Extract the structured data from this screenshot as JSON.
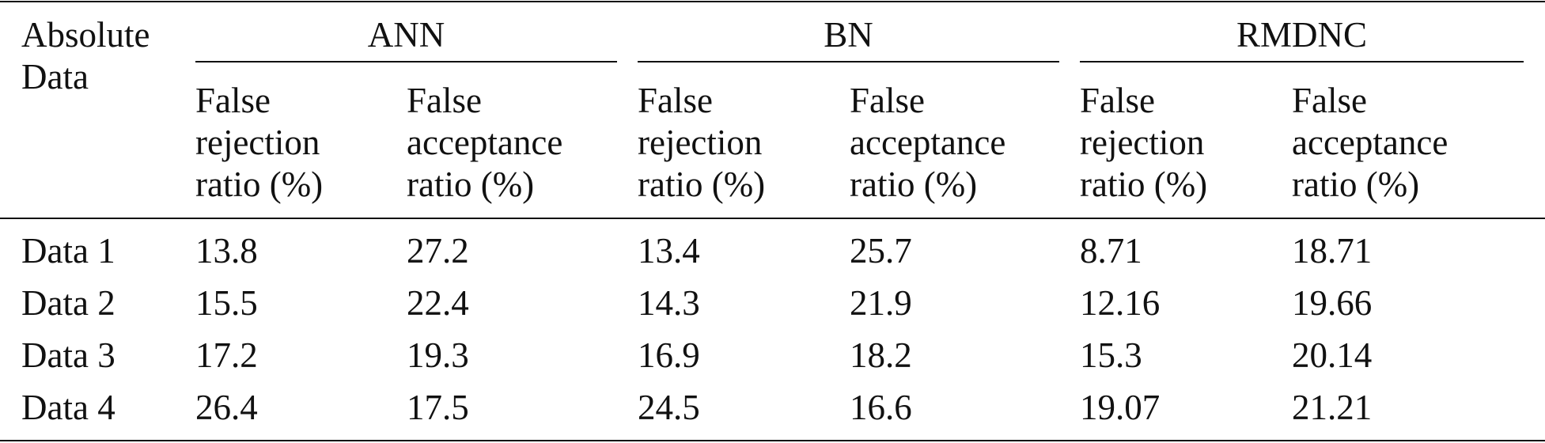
{
  "table": {
    "corner": "Absolute Data",
    "groups": [
      "ANN",
      "BN",
      "RMDNC"
    ],
    "subheaders": [
      "False rejection ratio (%)",
      "False acceptance ratio (%)",
      "False rejection ratio (%)",
      "False acceptance ratio (%)",
      "False rejection ratio (%)",
      "False acceptance ratio (%)"
    ],
    "rows": [
      [
        "Data 1",
        13.8,
        27.2,
        13.4,
        25.7,
        8.71,
        18.71
      ],
      [
        "Data 2",
        15.5,
        22.4,
        14.3,
        21.9,
        12.16,
        19.66
      ],
      [
        "Data 3",
        17.2,
        19.3,
        16.9,
        18.2,
        15.3,
        20.14
      ],
      [
        "Data 4",
        26.4,
        17.5,
        24.5,
        16.6,
        19.07,
        21.21
      ]
    ]
  }
}
